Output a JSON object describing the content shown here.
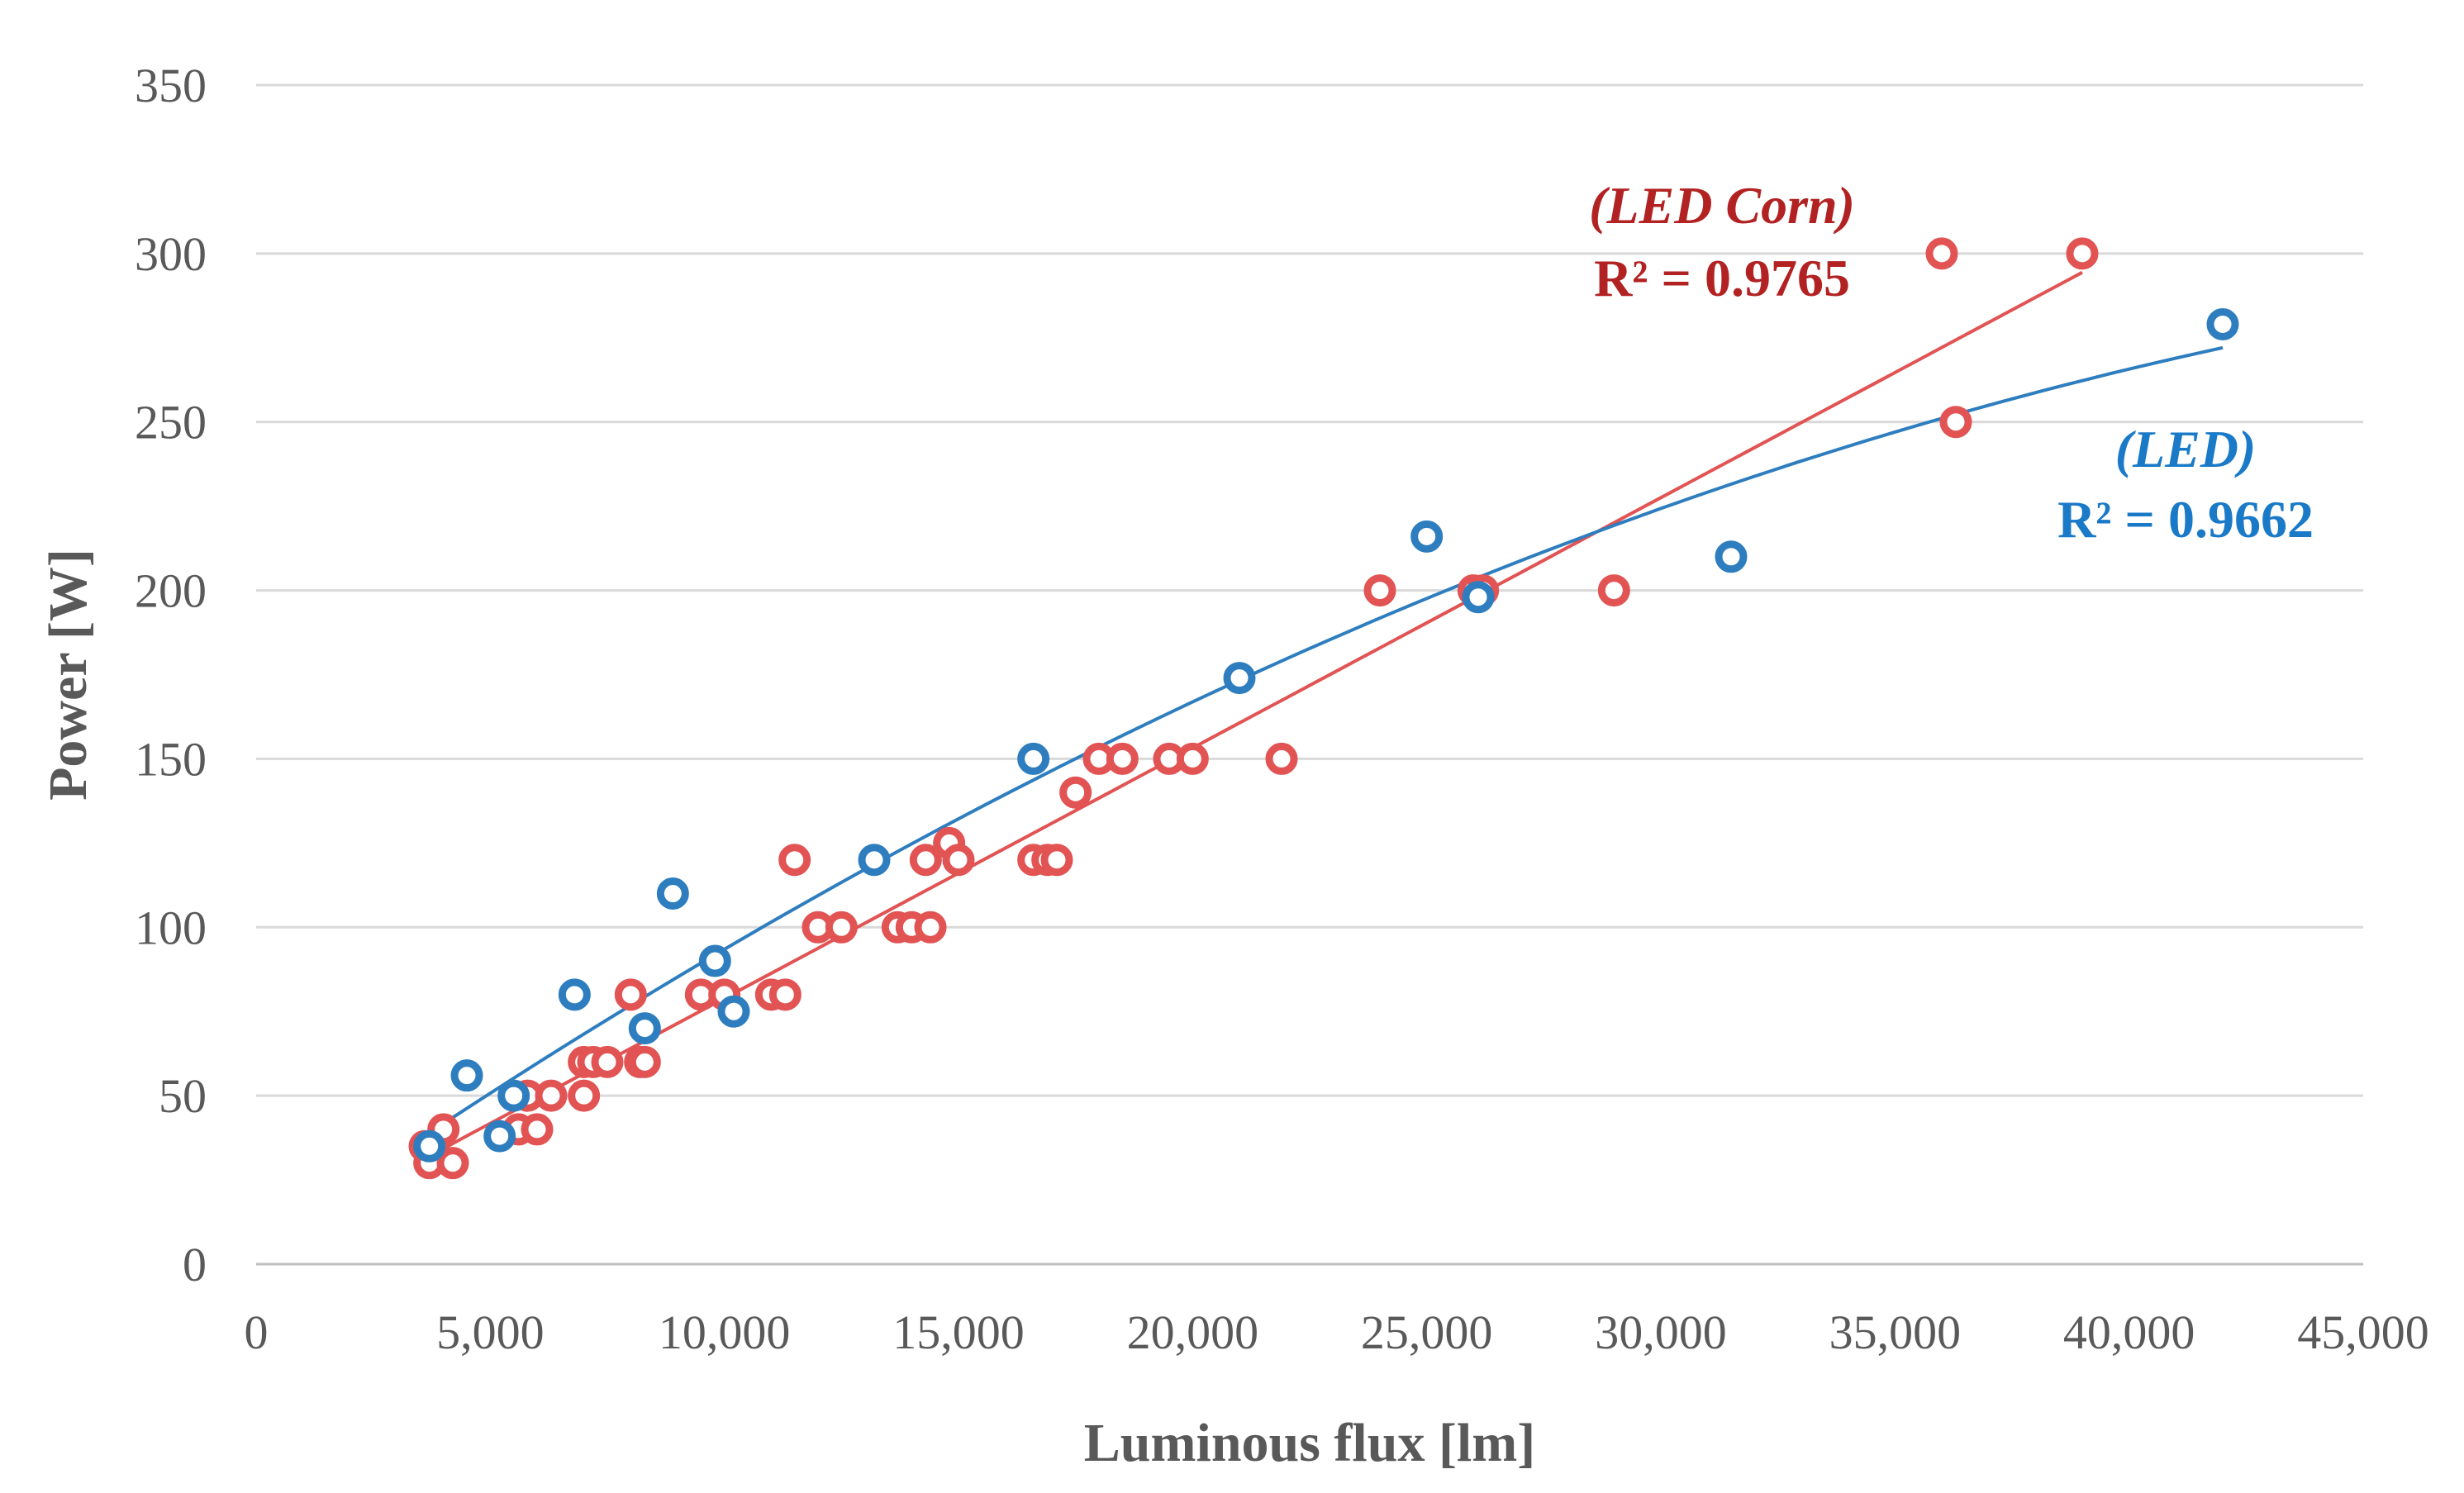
{
  "chart_data": {
    "type": "scatter",
    "title": "",
    "xlabel": "Luminous flux [lm]",
    "ylabel": "Power [W]",
    "xlim": [
      0,
      45000
    ],
    "ylim": [
      0,
      350
    ],
    "x_ticks": [
      0,
      5000,
      10000,
      15000,
      20000,
      25000,
      30000,
      35000,
      40000,
      45000
    ],
    "x_tick_labels": [
      "0",
      "5,000",
      "10,000",
      "15,000",
      "20,000",
      "25,000",
      "30,000",
      "35,000",
      "40,000",
      "45,000"
    ],
    "y_ticks": [
      0,
      50,
      100,
      150,
      200,
      250,
      300,
      350
    ],
    "y_tick_labels": [
      "0",
      "50",
      "100",
      "150",
      "200",
      "250",
      "300",
      "350"
    ],
    "grid": "horizontal",
    "series": [
      {
        "name": "LED Corn",
        "color": "#e25353",
        "trendline": "linear",
        "trend_from": 3600,
        "trend_to": 39000,
        "annotation_name": "(LED Corn)",
        "annotation_r2": "R² = 0.9765",
        "annotation_color": "#b22222",
        "points": [
          {
            "x": 3600,
            "y": 35
          },
          {
            "x": 3700,
            "y": 30
          },
          {
            "x": 4000,
            "y": 40
          },
          {
            "x": 4200,
            "y": 30
          },
          {
            "x": 5600,
            "y": 40
          },
          {
            "x": 5800,
            "y": 50
          },
          {
            "x": 6000,
            "y": 40
          },
          {
            "x": 6300,
            "y": 50
          },
          {
            "x": 7000,
            "y": 50
          },
          {
            "x": 7000,
            "y": 60
          },
          {
            "x": 7200,
            "y": 60
          },
          {
            "x": 7500,
            "y": 60
          },
          {
            "x": 8000,
            "y": 80
          },
          {
            "x": 8200,
            "y": 60
          },
          {
            "x": 8300,
            "y": 60
          },
          {
            "x": 9500,
            "y": 80
          },
          {
            "x": 10000,
            "y": 80
          },
          {
            "x": 11000,
            "y": 80
          },
          {
            "x": 11300,
            "y": 80
          },
          {
            "x": 11500,
            "y": 120
          },
          {
            "x": 12000,
            "y": 100
          },
          {
            "x": 12500,
            "y": 100
          },
          {
            "x": 13700,
            "y": 100
          },
          {
            "x": 14000,
            "y": 100
          },
          {
            "x": 14400,
            "y": 100
          },
          {
            "x": 14300,
            "y": 120
          },
          {
            "x": 14800,
            "y": 125
          },
          {
            "x": 15000,
            "y": 120
          },
          {
            "x": 16600,
            "y": 120
          },
          {
            "x": 16900,
            "y": 120
          },
          {
            "x": 17100,
            "y": 120
          },
          {
            "x": 17500,
            "y": 140
          },
          {
            "x": 18000,
            "y": 150
          },
          {
            "x": 18500,
            "y": 150
          },
          {
            "x": 19500,
            "y": 150
          },
          {
            "x": 20000,
            "y": 150
          },
          {
            "x": 21900,
            "y": 150
          },
          {
            "x": 24000,
            "y": 200
          },
          {
            "x": 26000,
            "y": 200
          },
          {
            "x": 26200,
            "y": 200
          },
          {
            "x": 29000,
            "y": 200
          },
          {
            "x": 36000,
            "y": 300
          },
          {
            "x": 36300,
            "y": 250
          },
          {
            "x": 39000,
            "y": 300
          }
        ]
      },
      {
        "name": "LED",
        "color": "#2e7ebf",
        "trendline": "polynomial",
        "trend_from": 3700,
        "trend_to": 42000,
        "annotation_name": "(LED)",
        "annotation_r2": "R² = 0.9662",
        "annotation_color": "#1a7ac7",
        "points": [
          {
            "x": 3700,
            "y": 35
          },
          {
            "x": 4500,
            "y": 56
          },
          {
            "x": 5200,
            "y": 38
          },
          {
            "x": 5500,
            "y": 50
          },
          {
            "x": 6800,
            "y": 80
          },
          {
            "x": 8300,
            "y": 70
          },
          {
            "x": 8900,
            "y": 110
          },
          {
            "x": 9800,
            "y": 90
          },
          {
            "x": 10200,
            "y": 75
          },
          {
            "x": 13200,
            "y": 120
          },
          {
            "x": 16600,
            "y": 150
          },
          {
            "x": 21000,
            "y": 174
          },
          {
            "x": 25000,
            "y": 216
          },
          {
            "x": 26100,
            "y": 198
          },
          {
            "x": 31500,
            "y": 210
          },
          {
            "x": 42000,
            "y": 279
          }
        ]
      }
    ]
  }
}
